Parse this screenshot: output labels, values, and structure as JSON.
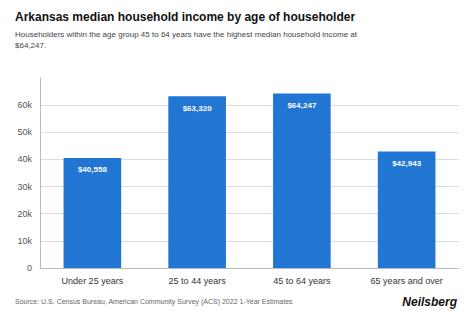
{
  "chart_data": {
    "type": "bar",
    "title": "Arkansas median household income by age of householder",
    "subtitle": "Householders within the age group 45 to 64 years have the highest median household income at\n$64,247.",
    "categories": [
      "Under 25 years",
      "25 to 44 years",
      "45 to 64 years",
      "65 years and over"
    ],
    "values": [
      40558,
      63320,
      64247,
      42943
    ],
    "value_labels": [
      "$40,558",
      "$63,320",
      "$64,247",
      "$42,943"
    ],
    "data_labels": true,
    "color": "#2176d4",
    "ylim": [
      0,
      70000
    ],
    "yticks": [
      0,
      {
        "value": 10000,
        "label": "10k"
      },
      {
        "value": 20000,
        "label": "20k"
      },
      {
        "value": 30000,
        "label": "30k"
      },
      {
        "value": 40000,
        "label": "40k"
      },
      {
        "value": 50000,
        "label": "50k"
      },
      {
        "value": 60000,
        "label": "60k"
      }
    ],
    "grid": true,
    "annotations": [
      "Source: U.S. Census Bureau, American Community Survey (ACS) 2022 1-Year Estimates",
      "Neilsberg"
    ]
  }
}
